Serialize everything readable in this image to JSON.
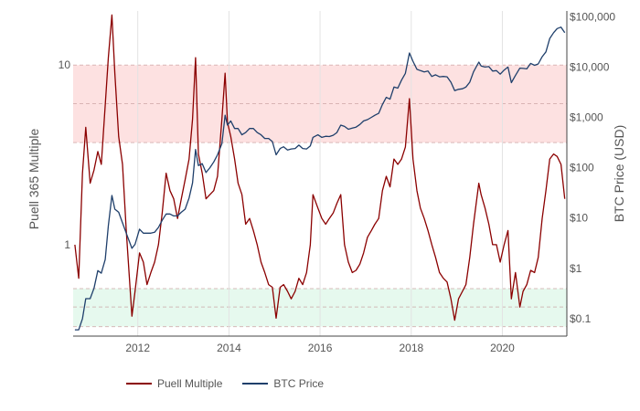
{
  "chart_data": {
    "type": "line",
    "title": "",
    "xlabel": "",
    "ylabel_left": "Puell 365 Multiple",
    "ylabel_right": "BTC Price (USD)",
    "x_range": [
      "2010-08-01",
      "2021-06-01"
    ],
    "x_ticks": [
      "2012",
      "2014",
      "2016",
      "2018",
      "2020"
    ],
    "y_left": {
      "scale": "log",
      "range": [
        0.31,
        20
      ],
      "ticks": [
        "1",
        "10"
      ]
    },
    "y_right": {
      "scale": "log",
      "range": [
        0.045,
        130000
      ],
      "ticks": [
        "$0.1",
        "$1",
        "$10",
        "$100",
        "$1,000",
        "$10,000",
        "$100,000"
      ]
    },
    "bands": [
      {
        "name": "overvalued-band",
        "axis": "left",
        "from": 3.7,
        "to": 10,
        "mid": 6.1,
        "color": "#fde1e1"
      },
      {
        "name": "undervalued-band",
        "axis": "left",
        "from": 0.35,
        "to": 0.57,
        "mid": 0.45,
        "color": "#e6f9ee"
      }
    ],
    "grid": true,
    "legend": "bottom-left",
    "series": [
      {
        "name": "Puell Multiple",
        "axis": "left",
        "color": "#8b0000",
        "points": [
          [
            "2010-08-15",
            1.0
          ],
          [
            "2010-09-15",
            0.65
          ],
          [
            "2010-10-15",
            2.5
          ],
          [
            "2010-11-10",
            4.5
          ],
          [
            "2010-12-15",
            2.2
          ],
          [
            "2011-01-15",
            2.6
          ],
          [
            "2011-02-15",
            3.3
          ],
          [
            "2011-03-15",
            2.8
          ],
          [
            "2011-04-15",
            6.0
          ],
          [
            "2011-05-10",
            11.0
          ],
          [
            "2011-06-08",
            19.0
          ],
          [
            "2011-07-01",
            9.0
          ],
          [
            "2011-08-01",
            4.0
          ],
          [
            "2011-09-01",
            2.8
          ],
          [
            "2011-10-01",
            1.2
          ],
          [
            "2011-11-15",
            0.4
          ],
          [
            "2011-12-10",
            0.55
          ],
          [
            "2012-01-15",
            0.9
          ],
          [
            "2012-02-15",
            0.8
          ],
          [
            "2012-03-15",
            0.6
          ],
          [
            "2012-04-15",
            0.7
          ],
          [
            "2012-05-15",
            0.8
          ],
          [
            "2012-06-15",
            1.0
          ],
          [
            "2012-07-15",
            1.5
          ],
          [
            "2012-08-15",
            2.5
          ],
          [
            "2012-09-15",
            2.0
          ],
          [
            "2012-10-15",
            1.8
          ],
          [
            "2012-11-15",
            1.4
          ],
          [
            "2012-12-15",
            1.8
          ],
          [
            "2013-01-15",
            2.3
          ],
          [
            "2013-02-15",
            3.0
          ],
          [
            "2013-03-15",
            5.0
          ],
          [
            "2013-04-08",
            11.0
          ],
          [
            "2013-05-01",
            3.2
          ],
          [
            "2013-06-01",
            2.5
          ],
          [
            "2013-07-01",
            1.8
          ],
          [
            "2013-08-01",
            1.9
          ],
          [
            "2013-09-01",
            2.0
          ],
          [
            "2013-10-01",
            2.4
          ],
          [
            "2013-11-05",
            5.0
          ],
          [
            "2013-12-01",
            9.0
          ],
          [
            "2013-12-20",
            4.8
          ],
          [
            "2014-01-15",
            4.0
          ],
          [
            "2014-02-15",
            3.0
          ],
          [
            "2014-03-15",
            2.2
          ],
          [
            "2014-04-15",
            1.9
          ],
          [
            "2014-05-15",
            1.3
          ],
          [
            "2014-06-15",
            1.4
          ],
          [
            "2014-07-15",
            1.2
          ],
          [
            "2014-08-15",
            1.0
          ],
          [
            "2014-09-15",
            0.8
          ],
          [
            "2014-10-15",
            0.7
          ],
          [
            "2014-11-15",
            0.6
          ],
          [
            "2014-12-15",
            0.58
          ],
          [
            "2015-01-14",
            0.39
          ],
          [
            "2015-02-15",
            0.58
          ],
          [
            "2015-03-15",
            0.6
          ],
          [
            "2015-04-15",
            0.55
          ],
          [
            "2015-05-15",
            0.5
          ],
          [
            "2015-06-15",
            0.55
          ],
          [
            "2015-07-15",
            0.65
          ],
          [
            "2015-08-15",
            0.6
          ],
          [
            "2015-09-15",
            0.7
          ],
          [
            "2015-10-15",
            1.0
          ],
          [
            "2015-11-05",
            1.9
          ],
          [
            "2015-12-15",
            1.6
          ],
          [
            "2016-01-15",
            1.4
          ],
          [
            "2016-02-15",
            1.3
          ],
          [
            "2016-03-15",
            1.4
          ],
          [
            "2016-04-15",
            1.5
          ],
          [
            "2016-05-15",
            1.7
          ],
          [
            "2016-06-15",
            1.9
          ],
          [
            "2016-07-15",
            1.0
          ],
          [
            "2016-08-15",
            0.8
          ],
          [
            "2016-09-15",
            0.7
          ],
          [
            "2016-10-15",
            0.72
          ],
          [
            "2016-11-15",
            0.78
          ],
          [
            "2016-12-15",
            0.9
          ],
          [
            "2017-01-15",
            1.1
          ],
          [
            "2017-02-15",
            1.2
          ],
          [
            "2017-03-15",
            1.3
          ],
          [
            "2017-04-15",
            1.4
          ],
          [
            "2017-05-15",
            2.0
          ],
          [
            "2017-06-15",
            2.4
          ],
          [
            "2017-07-15",
            2.1
          ],
          [
            "2017-08-15",
            3.0
          ],
          [
            "2017-09-15",
            2.8
          ],
          [
            "2017-10-15",
            3.0
          ],
          [
            "2017-11-15",
            3.5
          ],
          [
            "2017-12-17",
            6.5
          ],
          [
            "2018-01-15",
            3.0
          ],
          [
            "2018-02-15",
            2.0
          ],
          [
            "2018-03-15",
            1.6
          ],
          [
            "2018-04-15",
            1.4
          ],
          [
            "2018-05-15",
            1.2
          ],
          [
            "2018-06-15",
            1.0
          ],
          [
            "2018-07-15",
            0.85
          ],
          [
            "2018-08-15",
            0.7
          ],
          [
            "2018-09-15",
            0.65
          ],
          [
            "2018-10-15",
            0.62
          ],
          [
            "2018-11-15",
            0.5
          ],
          [
            "2018-12-15",
            0.38
          ],
          [
            "2019-01-15",
            0.5
          ],
          [
            "2019-02-15",
            0.55
          ],
          [
            "2019-03-15",
            0.6
          ],
          [
            "2019-04-15",
            0.85
          ],
          [
            "2019-05-15",
            1.3
          ],
          [
            "2019-06-26",
            2.2
          ],
          [
            "2019-07-15",
            1.9
          ],
          [
            "2019-08-15",
            1.6
          ],
          [
            "2019-09-15",
            1.3
          ],
          [
            "2019-10-15",
            1.0
          ],
          [
            "2019-11-15",
            1.0
          ],
          [
            "2019-12-15",
            0.8
          ],
          [
            "2020-01-15",
            1.0
          ],
          [
            "2020-02-15",
            1.2
          ],
          [
            "2020-03-13",
            0.5
          ],
          [
            "2020-04-15",
            0.7
          ],
          [
            "2020-05-20",
            0.45
          ],
          [
            "2020-06-15",
            0.55
          ],
          [
            "2020-07-15",
            0.6
          ],
          [
            "2020-08-15",
            0.72
          ],
          [
            "2020-09-15",
            0.7
          ],
          [
            "2020-10-15",
            0.85
          ],
          [
            "2020-11-15",
            1.4
          ],
          [
            "2020-12-15",
            2.0
          ],
          [
            "2021-01-15",
            3.0
          ],
          [
            "2021-02-15",
            3.2
          ],
          [
            "2021-03-15",
            3.1
          ],
          [
            "2021-04-15",
            2.8
          ],
          [
            "2021-05-15",
            1.8
          ]
        ]
      },
      {
        "name": "BTC Price",
        "axis": "right",
        "color": "#1f3f6b",
        "points": [
          [
            "2010-08-15",
            0.06
          ],
          [
            "2010-09-15",
            0.06
          ],
          [
            "2010-10-15",
            0.1
          ],
          [
            "2010-11-10",
            0.25
          ],
          [
            "2010-12-15",
            0.25
          ],
          [
            "2011-01-15",
            0.4
          ],
          [
            "2011-02-15",
            0.9
          ],
          [
            "2011-03-15",
            0.8
          ],
          [
            "2011-04-15",
            1.5
          ],
          [
            "2011-05-10",
            7.0
          ],
          [
            "2011-06-08",
            28.0
          ],
          [
            "2011-07-01",
            15.0
          ],
          [
            "2011-08-01",
            13.0
          ],
          [
            "2011-09-01",
            8.0
          ],
          [
            "2011-10-01",
            5.0
          ],
          [
            "2011-11-15",
            2.5
          ],
          [
            "2011-12-10",
            3.0
          ],
          [
            "2012-01-15",
            6.0
          ],
          [
            "2012-02-15",
            5.0
          ],
          [
            "2012-03-15",
            5.0
          ],
          [
            "2012-04-15",
            5.0
          ],
          [
            "2012-05-15",
            5.2
          ],
          [
            "2012-06-15",
            6.5
          ],
          [
            "2012-07-15",
            9.0
          ],
          [
            "2012-08-15",
            12.0
          ],
          [
            "2012-09-15",
            12.0
          ],
          [
            "2012-10-15",
            11.0
          ],
          [
            "2012-11-15",
            11.0
          ],
          [
            "2012-12-15",
            13.0
          ],
          [
            "2013-01-15",
            15.0
          ],
          [
            "2013-02-15",
            25.0
          ],
          [
            "2013-03-15",
            50.0
          ],
          [
            "2013-04-08",
            230.0
          ],
          [
            "2013-05-01",
            110.0
          ],
          [
            "2013-06-01",
            120.0
          ],
          [
            "2013-07-01",
            80.0
          ],
          [
            "2013-08-01",
            100.0
          ],
          [
            "2013-09-01",
            130.0
          ],
          [
            "2013-10-01",
            180.0
          ],
          [
            "2013-11-05",
            300.0
          ],
          [
            "2013-12-01",
            1100.0
          ],
          [
            "2013-12-20",
            700.0
          ],
          [
            "2014-01-15",
            850.0
          ],
          [
            "2014-02-15",
            600.0
          ],
          [
            "2014-03-15",
            600.0
          ],
          [
            "2014-04-15",
            450.0
          ],
          [
            "2014-05-15",
            500.0
          ],
          [
            "2014-06-15",
            600.0
          ],
          [
            "2014-07-15",
            600.0
          ],
          [
            "2014-08-15",
            500.0
          ],
          [
            "2014-09-15",
            450.0
          ],
          [
            "2014-10-15",
            380.0
          ],
          [
            "2014-11-15",
            380.0
          ],
          [
            "2014-12-15",
            330.0
          ],
          [
            "2015-01-14",
            180.0
          ],
          [
            "2015-02-15",
            240.0
          ],
          [
            "2015-03-15",
            260.0
          ],
          [
            "2015-04-15",
            225.0
          ],
          [
            "2015-05-15",
            235.0
          ],
          [
            "2015-06-15",
            240.0
          ],
          [
            "2015-07-15",
            280.0
          ],
          [
            "2015-08-15",
            240.0
          ],
          [
            "2015-09-15",
            235.0
          ],
          [
            "2015-10-15",
            270.0
          ],
          [
            "2015-11-05",
            400.0
          ],
          [
            "2015-12-15",
            450.0
          ],
          [
            "2016-01-15",
            400.0
          ],
          [
            "2016-02-15",
            420.0
          ],
          [
            "2016-03-15",
            415.0
          ],
          [
            "2016-04-15",
            440.0
          ],
          [
            "2016-05-15",
            500.0
          ],
          [
            "2016-06-15",
            700.0
          ],
          [
            "2016-07-15",
            660.0
          ],
          [
            "2016-08-15",
            580.0
          ],
          [
            "2016-09-15",
            610.0
          ],
          [
            "2016-10-15",
            640.0
          ],
          [
            "2016-11-15",
            720.0
          ],
          [
            "2016-12-15",
            850.0
          ],
          [
            "2017-01-15",
            900.0
          ],
          [
            "2017-02-15",
            1000.0
          ],
          [
            "2017-03-15",
            1100.0
          ],
          [
            "2017-04-15",
            1200.0
          ],
          [
            "2017-05-15",
            1800.0
          ],
          [
            "2017-06-15",
            2500.0
          ],
          [
            "2017-07-15",
            2300.0
          ],
          [
            "2017-08-15",
            4000.0
          ],
          [
            "2017-09-15",
            3800.0
          ],
          [
            "2017-10-15",
            5500.0
          ],
          [
            "2017-11-15",
            7500.0
          ],
          [
            "2017-12-17",
            19000.0
          ],
          [
            "2018-01-15",
            13000.0
          ],
          [
            "2018-02-15",
            9000.0
          ],
          [
            "2018-03-15",
            8500.0
          ],
          [
            "2018-04-15",
            8000.0
          ],
          [
            "2018-05-15",
            8300.0
          ],
          [
            "2018-06-15",
            6500.0
          ],
          [
            "2018-07-15",
            7000.0
          ],
          [
            "2018-08-15",
            6400.0
          ],
          [
            "2018-09-15",
            6500.0
          ],
          [
            "2018-10-15",
            6400.0
          ],
          [
            "2018-11-15",
            5000.0
          ],
          [
            "2018-12-15",
            3400.0
          ],
          [
            "2019-01-15",
            3600.0
          ],
          [
            "2019-02-15",
            3700.0
          ],
          [
            "2019-03-15",
            4000.0
          ],
          [
            "2019-04-15",
            5000.0
          ],
          [
            "2019-05-15",
            8000.0
          ],
          [
            "2019-06-26",
            12500.0
          ],
          [
            "2019-07-15",
            10500.0
          ],
          [
            "2019-08-15",
            10000.0
          ],
          [
            "2019-09-15",
            10200.0
          ],
          [
            "2019-10-15",
            8300.0
          ],
          [
            "2019-11-15",
            8500.0
          ],
          [
            "2019-12-15",
            7200.0
          ],
          [
            "2020-01-15",
            8700.0
          ],
          [
            "2020-02-15",
            10000.0
          ],
          [
            "2020-03-13",
            4900.0
          ],
          [
            "2020-04-15",
            6800.0
          ],
          [
            "2020-05-20",
            9500.0
          ],
          [
            "2020-06-15",
            9400.0
          ],
          [
            "2020-07-15",
            9200.0
          ],
          [
            "2020-08-15",
            11800.0
          ],
          [
            "2020-09-15",
            10800.0
          ],
          [
            "2020-10-15",
            11500.0
          ],
          [
            "2020-11-15",
            16000.0
          ],
          [
            "2020-12-15",
            20000.0
          ],
          [
            "2021-01-15",
            37000.0
          ],
          [
            "2021-02-15",
            48000.0
          ],
          [
            "2021-03-15",
            58000.0
          ],
          [
            "2021-04-15",
            62000.0
          ],
          [
            "2021-05-15",
            48000.0
          ]
        ]
      }
    ]
  }
}
